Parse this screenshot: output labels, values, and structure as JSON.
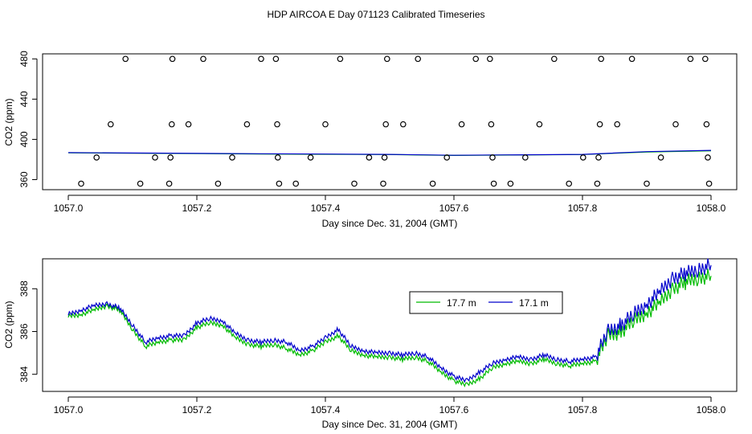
{
  "title": "HDP AIRCOA E  Day 071123  Calibrated Timeseries",
  "colors": {
    "green": "#00bb00",
    "blue": "#0000cc",
    "axis": "#000000"
  },
  "chart_data": [
    {
      "type": "scatter",
      "xlabel": "Day since Dec. 31, 2004 (GMT)",
      "ylabel": "CO2 (ppm)",
      "xlim": [
        1057.0,
        1058.0
      ],
      "ylim": [
        350,
        485
      ],
      "x_ticks": [
        "1057.0",
        "1057.2",
        "1057.4",
        "1057.6",
        "1057.8",
        "1058.0"
      ],
      "x_tick_values": [
        1057.0,
        1057.2,
        1057.4,
        1057.6,
        1057.8,
        1058.0
      ],
      "y_ticks": [
        "360",
        "400",
        "440",
        "480"
      ],
      "y_tick_values": [
        360,
        400,
        440,
        480
      ],
      "calibration_points": [
        {
          "x": 1057.02,
          "y": 356
        },
        {
          "x": 1057.044,
          "y": 382
        },
        {
          "x": 1057.066,
          "y": 415
        },
        {
          "x": 1057.089,
          "y": 480
        },
        {
          "x": 1057.112,
          "y": 356
        },
        {
          "x": 1057.135,
          "y": 382
        },
        {
          "x": 1057.157,
          "y": 356
        },
        {
          "x": 1057.159,
          "y": 382
        },
        {
          "x": 1057.161,
          "y": 415
        },
        {
          "x": 1057.162,
          "y": 480
        },
        {
          "x": 1057.187,
          "y": 415
        },
        {
          "x": 1057.21,
          "y": 480
        },
        {
          "x": 1057.233,
          "y": 356
        },
        {
          "x": 1057.255,
          "y": 382
        },
        {
          "x": 1057.278,
          "y": 415
        },
        {
          "x": 1057.3,
          "y": 480
        },
        {
          "x": 1057.323,
          "y": 480
        },
        {
          "x": 1057.325,
          "y": 415
        },
        {
          "x": 1057.326,
          "y": 382
        },
        {
          "x": 1057.328,
          "y": 356
        },
        {
          "x": 1057.354,
          "y": 356
        },
        {
          "x": 1057.377,
          "y": 382
        },
        {
          "x": 1057.4,
          "y": 415
        },
        {
          "x": 1057.423,
          "y": 480
        },
        {
          "x": 1057.445,
          "y": 356
        },
        {
          "x": 1057.468,
          "y": 382
        },
        {
          "x": 1057.49,
          "y": 356
        },
        {
          "x": 1057.492,
          "y": 382
        },
        {
          "x": 1057.494,
          "y": 415
        },
        {
          "x": 1057.496,
          "y": 480
        },
        {
          "x": 1057.521,
          "y": 415
        },
        {
          "x": 1057.544,
          "y": 480
        },
        {
          "x": 1057.567,
          "y": 356
        },
        {
          "x": 1057.589,
          "y": 382
        },
        {
          "x": 1057.612,
          "y": 415
        },
        {
          "x": 1057.634,
          "y": 480
        },
        {
          "x": 1057.656,
          "y": 480
        },
        {
          "x": 1057.658,
          "y": 415
        },
        {
          "x": 1057.66,
          "y": 382
        },
        {
          "x": 1057.662,
          "y": 356
        },
        {
          "x": 1057.688,
          "y": 356
        },
        {
          "x": 1057.711,
          "y": 382
        },
        {
          "x": 1057.733,
          "y": 415
        },
        {
          "x": 1057.756,
          "y": 480
        },
        {
          "x": 1057.779,
          "y": 356
        },
        {
          "x": 1057.801,
          "y": 382
        },
        {
          "x": 1057.823,
          "y": 356
        },
        {
          "x": 1057.825,
          "y": 382
        },
        {
          "x": 1057.827,
          "y": 415
        },
        {
          "x": 1057.829,
          "y": 480
        },
        {
          "x": 1057.854,
          "y": 415
        },
        {
          "x": 1057.877,
          "y": 480
        },
        {
          "x": 1057.9,
          "y": 356
        },
        {
          "x": 1057.922,
          "y": 382
        },
        {
          "x": 1057.945,
          "y": 415
        },
        {
          "x": 1057.968,
          "y": 480
        },
        {
          "x": 1057.991,
          "y": 480
        },
        {
          "x": 1057.993,
          "y": 415
        },
        {
          "x": 1057.995,
          "y": 382
        },
        {
          "x": 1057.997,
          "y": 356
        }
      ],
      "series": [
        {
          "name": "17.7 m",
          "color": "#00bb00",
          "x": [
            1057.0,
            1057.1,
            1057.3,
            1057.5,
            1057.6,
            1057.8,
            1057.9,
            1058.0
          ],
          "y": [
            386.7,
            386.2,
            385.5,
            384.9,
            384.0,
            384.9,
            387.5,
            388.6
          ]
        },
        {
          "name": "17.1 m",
          "color": "#0000cc",
          "x": [
            1057.0,
            1057.1,
            1057.3,
            1057.5,
            1057.6,
            1057.8,
            1057.9,
            1058.0
          ],
          "y": [
            386.8,
            386.4,
            385.7,
            385.1,
            384.2,
            385.1,
            387.8,
            389.1
          ]
        }
      ]
    },
    {
      "type": "line",
      "xlabel": "Day since Dec. 31, 2004 (GMT)",
      "ylabel": "CO2 (ppm)",
      "xlim": [
        1057.0,
        1058.0
      ],
      "ylim": [
        383.2,
        389.4
      ],
      "x_ticks": [
        "1057.0",
        "1057.2",
        "1057.4",
        "1057.6",
        "1057.8",
        "1058.0"
      ],
      "x_tick_values": [
        1057.0,
        1057.2,
        1057.4,
        1057.6,
        1057.8,
        1058.0
      ],
      "y_ticks": [
        "384",
        "386",
        "388"
      ],
      "y_tick_values": [
        384,
        386,
        388
      ],
      "legend_position": "top-right",
      "series": [
        {
          "name": "17.7 m",
          "color": "#00bb00",
          "x": [
            1057.0,
            1057.02,
            1057.04,
            1057.06,
            1057.08,
            1057.1,
            1057.12,
            1057.14,
            1057.16,
            1057.18,
            1057.2,
            1057.22,
            1057.24,
            1057.26,
            1057.28,
            1057.3,
            1057.32,
            1057.34,
            1057.36,
            1057.38,
            1057.4,
            1057.42,
            1057.44,
            1057.46,
            1057.48,
            1057.5,
            1057.52,
            1057.54,
            1057.56,
            1057.58,
            1057.6,
            1057.62,
            1057.64,
            1057.66,
            1057.68,
            1057.7,
            1057.72,
            1057.74,
            1057.76,
            1057.78,
            1057.8,
            1057.82,
            1057.84,
            1057.86,
            1057.88,
            1057.9,
            1057.92,
            1057.94,
            1057.96,
            1057.98,
            1058.0
          ],
          "y": [
            386.7,
            386.8,
            387.0,
            387.2,
            387.0,
            386.1,
            385.3,
            385.5,
            385.6,
            385.6,
            386.2,
            386.4,
            386.3,
            385.7,
            385.4,
            385.3,
            385.4,
            385.2,
            384.9,
            385.1,
            385.5,
            385.8,
            385.1,
            384.9,
            384.8,
            384.8,
            384.7,
            384.8,
            384.6,
            384.1,
            383.7,
            383.5,
            383.8,
            384.3,
            384.5,
            384.6,
            384.5,
            384.7,
            384.5,
            384.4,
            384.5,
            384.6,
            385.8,
            386.0,
            386.5,
            386.9,
            387.3,
            388.0,
            388.3,
            388.5,
            388.6
          ]
        },
        {
          "name": "17.1 m",
          "color": "#0000cc",
          "x": [
            1057.0,
            1057.02,
            1057.04,
            1057.06,
            1057.08,
            1057.1,
            1057.12,
            1057.14,
            1057.16,
            1057.18,
            1057.2,
            1057.22,
            1057.24,
            1057.26,
            1057.28,
            1057.3,
            1057.32,
            1057.34,
            1057.36,
            1057.38,
            1057.4,
            1057.42,
            1057.44,
            1057.46,
            1057.48,
            1057.5,
            1057.52,
            1057.54,
            1057.56,
            1057.58,
            1057.6,
            1057.62,
            1057.64,
            1057.66,
            1057.68,
            1057.7,
            1057.72,
            1057.74,
            1057.76,
            1057.78,
            1057.8,
            1057.82,
            1057.84,
            1057.86,
            1057.88,
            1057.9,
            1057.92,
            1057.94,
            1057.96,
            1057.98,
            1058.0
          ],
          "y": [
            386.8,
            387.0,
            387.2,
            387.3,
            387.1,
            386.3,
            385.5,
            385.7,
            385.8,
            385.8,
            386.4,
            386.6,
            386.5,
            385.9,
            385.6,
            385.5,
            385.6,
            385.5,
            385.1,
            385.3,
            385.7,
            386.1,
            385.3,
            385.1,
            385.0,
            385.0,
            384.9,
            385.0,
            384.8,
            384.3,
            383.9,
            383.7,
            384.1,
            384.5,
            384.7,
            384.8,
            384.7,
            384.9,
            384.7,
            384.6,
            384.7,
            384.8,
            386.0,
            386.3,
            386.8,
            387.3,
            387.8,
            388.5,
            388.7,
            388.9,
            389.1
          ]
        }
      ]
    }
  ]
}
